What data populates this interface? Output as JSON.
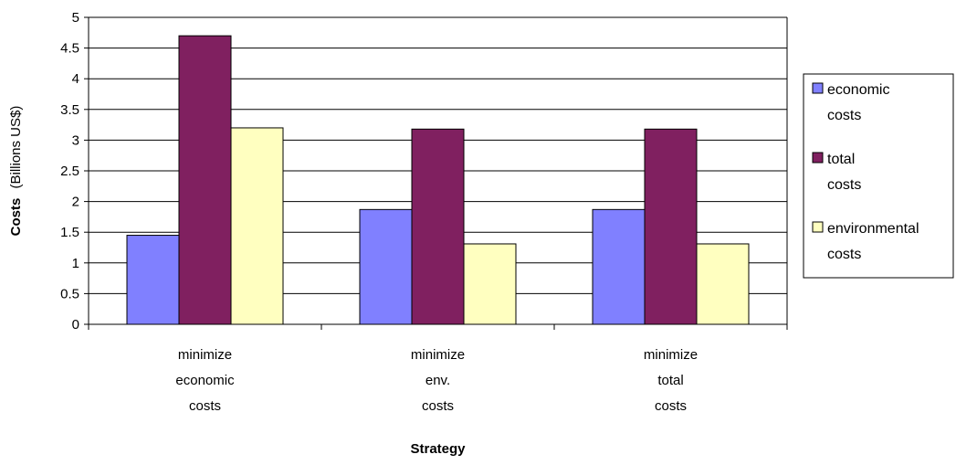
{
  "chart_data": {
    "type": "bar",
    "categories": [
      [
        "minimize",
        "economic",
        "costs"
      ],
      [
        "minimize",
        "env.",
        "costs"
      ],
      [
        "minimize",
        "total",
        "costs"
      ]
    ],
    "series": [
      {
        "name": "economic costs",
        "legend_lines": [
          "economic",
          "costs"
        ],
        "color": "#8080ff",
        "values": [
          1.45,
          1.87,
          1.87
        ]
      },
      {
        "name": "total costs",
        "legend_lines": [
          "total",
          "costs"
        ],
        "color": "#802060",
        "values": [
          4.7,
          3.18,
          3.18
        ]
      },
      {
        "name": "environmental costs",
        "legend_lines": [
          "environmental",
          "costs"
        ],
        "color": "#ffffc0",
        "values": [
          3.2,
          1.31,
          1.31
        ]
      }
    ],
    "xlabel": "Strategy",
    "ylabel_bold": "Costs",
    "ylabel_rest": "(Billions US$)",
    "ylim": [
      0,
      5
    ],
    "yticks": [
      "0",
      "0.5",
      "1",
      "1.5",
      "2",
      "2.5",
      "3",
      "3.5",
      "4",
      "4.5",
      "5"
    ],
    "grid": true,
    "legend_position": "right"
  }
}
